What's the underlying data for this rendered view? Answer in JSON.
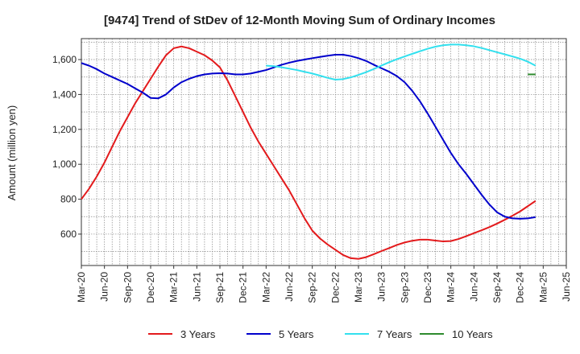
{
  "chart_data": {
    "type": "line",
    "title": "[9474]  Trend of StDev of 12-Month Moving Sum of Ordinary Incomes",
    "ylabel": "Amount (million yen)",
    "xlabel": "",
    "x_ticks": [
      "Mar-20",
      "Jun-20",
      "Sep-20",
      "Dec-20",
      "Mar-21",
      "Jun-21",
      "Sep-21",
      "Dec-21",
      "Mar-22",
      "Jun-22",
      "Sep-22",
      "Dec-22",
      "Mar-23",
      "Jun-23",
      "Sep-23",
      "Dec-23",
      "Mar-24",
      "Jun-24",
      "Sep-24",
      "Dec-24",
      "Mar-25",
      "Jun-25"
    ],
    "y_ticks": [
      600,
      800,
      1000,
      1200,
      1400,
      1600
    ],
    "y_tick_labels": [
      "600",
      "800",
      "1,000",
      "1,200",
      "1,400",
      "1,600"
    ],
    "ylim": [
      420,
      1720
    ],
    "xlim": [
      "Mar-20",
      "Jun-25"
    ],
    "grid": true,
    "legend_position": "bottom",
    "series": [
      {
        "name": "3 Years",
        "color": "#e31a1c",
        "points": [
          [
            "Mar-20",
            800
          ],
          [
            "Apr-20",
            860
          ],
          [
            "May-20",
            930
          ],
          [
            "Jun-20",
            1010
          ],
          [
            "Jul-20",
            1100
          ],
          [
            "Aug-20",
            1190
          ],
          [
            "Sep-20",
            1270
          ],
          [
            "Oct-20",
            1350
          ],
          [
            "Nov-20",
            1420
          ],
          [
            "Dec-20",
            1490
          ],
          [
            "Jan-21",
            1560
          ],
          [
            "Feb-21",
            1625
          ],
          [
            "Mar-21",
            1665
          ],
          [
            "Apr-21",
            1675
          ],
          [
            "May-21",
            1665
          ],
          [
            "Jun-21",
            1645
          ],
          [
            "Jul-21",
            1625
          ],
          [
            "Aug-21",
            1595
          ],
          [
            "Sep-21",
            1555
          ],
          [
            "Oct-21",
            1480
          ],
          [
            "Nov-21",
            1390
          ],
          [
            "Dec-21",
            1300
          ],
          [
            "Jan-22",
            1210
          ],
          [
            "Feb-22",
            1130
          ],
          [
            "Mar-22",
            1060
          ],
          [
            "Apr-22",
            990
          ],
          [
            "May-22",
            920
          ],
          [
            "Jun-22",
            850
          ],
          [
            "Jul-22",
            770
          ],
          [
            "Aug-22",
            690
          ],
          [
            "Sep-22",
            620
          ],
          [
            "Oct-22",
            575
          ],
          [
            "Nov-22",
            540
          ],
          [
            "Dec-22",
            510
          ],
          [
            "Jan-23",
            480
          ],
          [
            "Feb-23",
            462
          ],
          [
            "Mar-23",
            458
          ],
          [
            "Apr-23",
            468
          ],
          [
            "May-23",
            485
          ],
          [
            "Jun-23",
            503
          ],
          [
            "Jul-23",
            520
          ],
          [
            "Aug-23",
            538
          ],
          [
            "Sep-23",
            552
          ],
          [
            "Oct-23",
            562
          ],
          [
            "Nov-23",
            568
          ],
          [
            "Dec-23",
            568
          ],
          [
            "Jan-24",
            563
          ],
          [
            "Feb-24",
            558
          ],
          [
            "Mar-24",
            560
          ],
          [
            "Apr-24",
            572
          ],
          [
            "May-24",
            588
          ],
          [
            "Jun-24",
            605
          ],
          [
            "Jul-24",
            622
          ],
          [
            "Aug-24",
            640
          ],
          [
            "Sep-24",
            660
          ],
          [
            "Oct-24",
            682
          ],
          [
            "Nov-24",
            705
          ],
          [
            "Dec-24",
            730
          ],
          [
            "Jan-25",
            760
          ],
          [
            "Feb-25",
            790
          ]
        ]
      },
      {
        "name": "5 Years",
        "color": "#0000cc",
        "points": [
          [
            "Mar-20",
            1580
          ],
          [
            "Apr-20",
            1565
          ],
          [
            "May-20",
            1545
          ],
          [
            "Jun-20",
            1520
          ],
          [
            "Jul-20",
            1500
          ],
          [
            "Aug-20",
            1480
          ],
          [
            "Sep-20",
            1460
          ],
          [
            "Oct-20",
            1435
          ],
          [
            "Nov-20",
            1410
          ],
          [
            "Dec-20",
            1380
          ],
          [
            "Jan-21",
            1378
          ],
          [
            "Feb-21",
            1400
          ],
          [
            "Mar-21",
            1440
          ],
          [
            "Apr-21",
            1470
          ],
          [
            "May-21",
            1490
          ],
          [
            "Jun-21",
            1505
          ],
          [
            "Jul-21",
            1515
          ],
          [
            "Aug-21",
            1520
          ],
          [
            "Sep-21",
            1522
          ],
          [
            "Oct-21",
            1520
          ],
          [
            "Nov-21",
            1515
          ],
          [
            "Dec-21",
            1515
          ],
          [
            "Jan-22",
            1520
          ],
          [
            "Feb-22",
            1530
          ],
          [
            "Mar-22",
            1540
          ],
          [
            "Apr-22",
            1555
          ],
          [
            "May-22",
            1570
          ],
          [
            "Jun-22",
            1582
          ],
          [
            "Jul-22",
            1592
          ],
          [
            "Aug-22",
            1600
          ],
          [
            "Sep-22",
            1608
          ],
          [
            "Oct-22",
            1615
          ],
          [
            "Nov-22",
            1622
          ],
          [
            "Dec-22",
            1628
          ],
          [
            "Jan-23",
            1628
          ],
          [
            "Feb-23",
            1620
          ],
          [
            "Mar-23",
            1608
          ],
          [
            "Apr-23",
            1592
          ],
          [
            "May-23",
            1570
          ],
          [
            "Jun-23",
            1550
          ],
          [
            "Jul-23",
            1530
          ],
          [
            "Aug-23",
            1505
          ],
          [
            "Sep-23",
            1470
          ],
          [
            "Oct-23",
            1420
          ],
          [
            "Nov-23",
            1360
          ],
          [
            "Dec-23",
            1290
          ],
          [
            "Jan-24",
            1215
          ],
          [
            "Feb-24",
            1140
          ],
          [
            "Mar-24",
            1065
          ],
          [
            "Apr-24",
            1000
          ],
          [
            "May-24",
            945
          ],
          [
            "Jun-24",
            885
          ],
          [
            "Jul-24",
            825
          ],
          [
            "Aug-24",
            770
          ],
          [
            "Sep-24",
            725
          ],
          [
            "Oct-24",
            700
          ],
          [
            "Nov-24",
            690
          ],
          [
            "Dec-24",
            688
          ],
          [
            "Jan-25",
            690
          ],
          [
            "Feb-25",
            697
          ]
        ]
      },
      {
        "name": "7 Years",
        "color": "#33e0ee",
        "points": [
          [
            "Mar-22",
            1565
          ],
          [
            "Apr-22",
            1562
          ],
          [
            "May-22",
            1556
          ],
          [
            "Jun-22",
            1548
          ],
          [
            "Jul-22",
            1540
          ],
          [
            "Aug-22",
            1530
          ],
          [
            "Sep-22",
            1520
          ],
          [
            "Oct-22",
            1508
          ],
          [
            "Nov-22",
            1495
          ],
          [
            "Dec-22",
            1485
          ],
          [
            "Jan-23",
            1488
          ],
          [
            "Feb-23",
            1498
          ],
          [
            "Mar-23",
            1512
          ],
          [
            "Apr-23",
            1528
          ],
          [
            "May-23",
            1546
          ],
          [
            "Jun-23",
            1566
          ],
          [
            "Jul-23",
            1585
          ],
          [
            "Aug-23",
            1602
          ],
          [
            "Sep-23",
            1618
          ],
          [
            "Oct-23",
            1633
          ],
          [
            "Nov-23",
            1648
          ],
          [
            "Dec-23",
            1662
          ],
          [
            "Jan-24",
            1674
          ],
          [
            "Feb-24",
            1682
          ],
          [
            "Mar-24",
            1686
          ],
          [
            "Apr-24",
            1686
          ],
          [
            "May-24",
            1682
          ],
          [
            "Jun-24",
            1676
          ],
          [
            "Jul-24",
            1666
          ],
          [
            "Aug-24",
            1654
          ],
          [
            "Sep-24",
            1642
          ],
          [
            "Oct-24",
            1630
          ],
          [
            "Nov-24",
            1618
          ],
          [
            "Dec-24",
            1605
          ],
          [
            "Jan-25",
            1588
          ],
          [
            "Feb-25",
            1565
          ]
        ]
      },
      {
        "name": "10 Years",
        "color": "#2e8b2e",
        "points": [
          [
            "Jan-25",
            1515
          ],
          [
            "Feb-25",
            1515
          ]
        ]
      }
    ]
  }
}
